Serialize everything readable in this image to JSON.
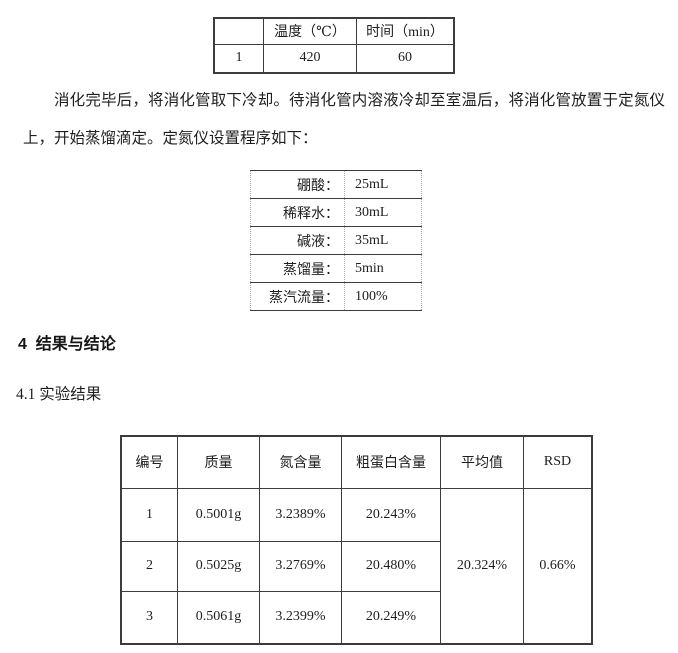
{
  "document": {
    "paragraph": "消化完毕后，将消化管取下冷却。待消化管内溶液冷却至室温后，将消化管放置于定氮仪上，开始蒸馏滴定。定氮仪设置程序如下：",
    "section_heading": "4  结果与结论",
    "subsection_heading": "4.1 实验结果"
  },
  "digestion_table": {
    "headers": [
      "",
      "温度（℃）",
      "时间（min）"
    ],
    "rows": [
      [
        "1",
        "420",
        "60"
      ]
    ]
  },
  "distillation_settings_table": {
    "rows": [
      {
        "label": "硼酸：",
        "value": "25mL"
      },
      {
        "label": "稀释水：",
        "value": "30mL"
      },
      {
        "label": "碱液：",
        "value": "35mL"
      },
      {
        "label": "蒸馏量：",
        "value": "5min"
      },
      {
        "label": "蒸汽流量：",
        "value": "100%"
      }
    ]
  },
  "results_table": {
    "headers": [
      "编号",
      "质量",
      "氮含量",
      "粗蛋白含量",
      "平均值",
      "RSD"
    ],
    "rows": [
      [
        "1",
        "0.5001g",
        "3.2389%",
        "20.243%"
      ],
      [
        "2",
        "0.5025g",
        "3.2769%",
        "20.480%"
      ],
      [
        "3",
        "0.5061g",
        "3.2399%",
        "20.249%"
      ]
    ],
    "merged": {
      "average": "20.324%",
      "rsd": "0.66%"
    }
  },
  "colors": {
    "background": "#ffffff",
    "text": "#1e1e1e",
    "border_dark": "#3c3c3c",
    "border_light": "#a6a6a6"
  }
}
